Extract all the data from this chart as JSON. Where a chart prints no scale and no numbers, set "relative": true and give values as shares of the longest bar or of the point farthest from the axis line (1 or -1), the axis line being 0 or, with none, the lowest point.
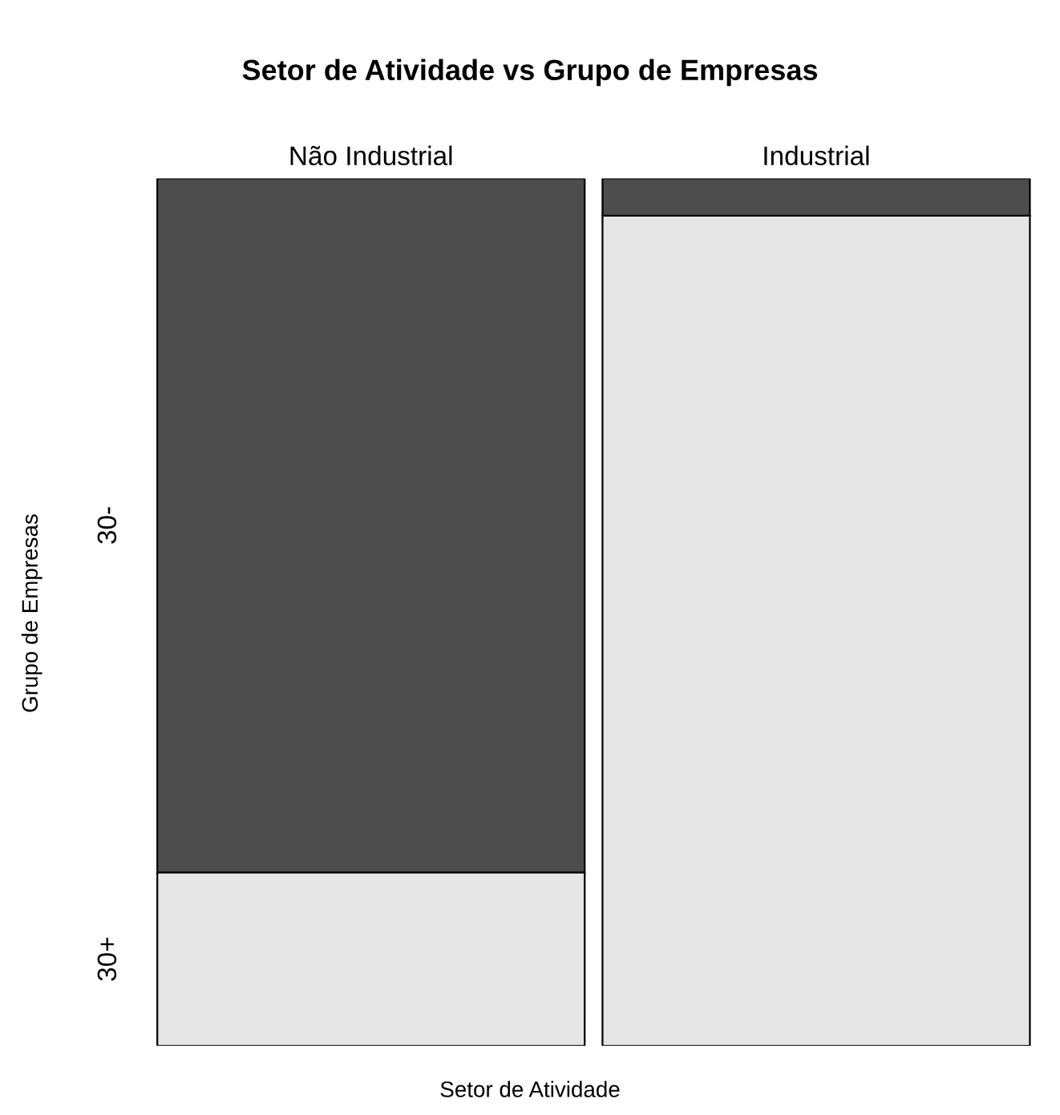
{
  "chart_data": {
    "type": "bar",
    "title": "Setor de Atividade vs Grupo de Empresas",
    "xlabel": "Setor de Atividade",
    "ylabel": "Grupo de Empresas",
    "categories": [
      "Não Industrial",
      "Industrial"
    ],
    "stacked": true,
    "relative": true,
    "legend": false,
    "series": [
      {
        "name": "30+",
        "color": "#e5e5e5",
        "values": [
          0.2,
          0.957
        ]
      },
      {
        "name": "30-",
        "color": "#4d4d4d",
        "values": [
          0.8,
          0.043
        ]
      }
    ]
  }
}
